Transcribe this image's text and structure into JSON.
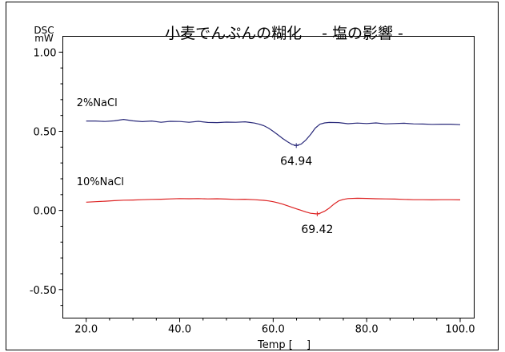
{
  "chart_data": {
    "type": "line",
    "title": "小麦でんぷんの糊化　 - 塩の影響 -",
    "ylabel_top": "DSC",
    "ylabel_unit": "mW",
    "xlabel": "Temp [　 ]",
    "xlim": [
      15,
      103
    ],
    "ylim": [
      -0.68,
      1.1
    ],
    "x_ticks": [
      {
        "value": 20,
        "label": "20.0"
      },
      {
        "value": 40,
        "label": "40.0"
      },
      {
        "value": 60,
        "label": "60.0"
      },
      {
        "value": 80,
        "label": "80.0"
      },
      {
        "value": 100,
        "label": "100.0"
      }
    ],
    "y_ticks": [
      {
        "value": 1.0,
        "label": "1.00"
      },
      {
        "value": 0.5,
        "label": "0.50"
      },
      {
        "value": 0.0,
        "label": "0.00"
      },
      {
        "value": -0.5,
        "label": "-0.50"
      }
    ],
    "grid": false,
    "series": [
      {
        "name": "2%NaCl",
        "color": "#2a2a7a",
        "label_x": 20,
        "label_y": 0.66,
        "x": [
          20,
          22,
          24,
          26,
          28,
          30,
          32,
          34,
          36,
          38,
          40,
          42,
          44,
          46,
          48,
          50,
          52,
          54,
          55,
          56,
          57,
          58,
          59,
          60,
          61,
          62,
          63,
          64,
          64.94,
          66,
          67,
          68,
          69,
          70,
          71,
          72,
          74,
          76,
          78,
          80,
          82,
          84,
          86,
          88,
          90,
          92,
          94,
          96,
          98,
          100
        ],
        "y": [
          0.565,
          0.565,
          0.562,
          0.566,
          0.575,
          0.566,
          0.561,
          0.565,
          0.557,
          0.563,
          0.562,
          0.557,
          0.563,
          0.556,
          0.555,
          0.558,
          0.557,
          0.56,
          0.556,
          0.552,
          0.545,
          0.535,
          0.52,
          0.5,
          0.478,
          0.455,
          0.435,
          0.417,
          0.41,
          0.42,
          0.445,
          0.48,
          0.52,
          0.545,
          0.553,
          0.556,
          0.555,
          0.548,
          0.552,
          0.549,
          0.553,
          0.547,
          0.549,
          0.551,
          0.547,
          0.546,
          0.544,
          0.545,
          0.545,
          0.542
        ],
        "peak": {
          "x": 64.94,
          "y": 0.41,
          "label": "64.94"
        }
      },
      {
        "name": "10%NaCl",
        "color": "#dd2222",
        "label_x": 20,
        "label_y": 0.16,
        "x": [
          20,
          22,
          24,
          26,
          28,
          30,
          32,
          34,
          36,
          38,
          40,
          42,
          44,
          46,
          48,
          50,
          52,
          54,
          56,
          58,
          59,
          60,
          61,
          62,
          63,
          64,
          65,
          66,
          67,
          68,
          69.42,
          70,
          71,
          72,
          73,
          74,
          75,
          76,
          78,
          80,
          82,
          84,
          86,
          88,
          90,
          92,
          94,
          96,
          98,
          100
        ],
        "y": [
          0.052,
          0.055,
          0.058,
          0.062,
          0.065,
          0.066,
          0.068,
          0.07,
          0.071,
          0.073,
          0.075,
          0.074,
          0.075,
          0.073,
          0.074,
          0.072,
          0.07,
          0.071,
          0.068,
          0.064,
          0.06,
          0.055,
          0.048,
          0.04,
          0.03,
          0.02,
          0.01,
          0.0,
          -0.01,
          -0.018,
          -0.022,
          -0.018,
          -0.005,
          0.015,
          0.04,
          0.06,
          0.07,
          0.075,
          0.077,
          0.076,
          0.074,
          0.073,
          0.072,
          0.07,
          0.068,
          0.068,
          0.067,
          0.068,
          0.068,
          0.067
        ],
        "peak": {
          "x": 69.42,
          "y": -0.022,
          "label": "69.42"
        }
      }
    ]
  }
}
